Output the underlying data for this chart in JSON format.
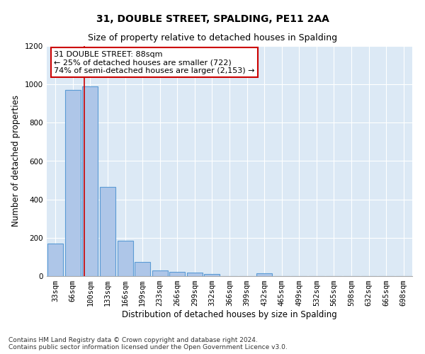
{
  "title": "31, DOUBLE STREET, SPALDING, PE11 2AA",
  "subtitle": "Size of property relative to detached houses in Spalding",
  "xlabel": "Distribution of detached houses by size in Spalding",
  "ylabel": "Number of detached properties",
  "categories": [
    "33sqm",
    "66sqm",
    "100sqm",
    "133sqm",
    "166sqm",
    "199sqm",
    "233sqm",
    "266sqm",
    "299sqm",
    "332sqm",
    "366sqm",
    "399sqm",
    "432sqm",
    "465sqm",
    "499sqm",
    "532sqm",
    "565sqm",
    "598sqm",
    "632sqm",
    "665sqm",
    "698sqm"
  ],
  "values": [
    170,
    970,
    990,
    465,
    185,
    75,
    30,
    22,
    18,
    12,
    0,
    0,
    15,
    0,
    0,
    0,
    0,
    0,
    0,
    0,
    0
  ],
  "bar_color": "#aec6e8",
  "bar_edge_color": "#5b9bd5",
  "vline_color": "#cc0000",
  "vline_pos": 1.647,
  "annotation_text": "31 DOUBLE STREET: 88sqm\n← 25% of detached houses are smaller (722)\n74% of semi-detached houses are larger (2,153) →",
  "annotation_box_color": "#ffffff",
  "annotation_box_edge": "#cc0000",
  "ylim": [
    0,
    1200
  ],
  "yticks": [
    0,
    200,
    400,
    600,
    800,
    1000,
    1200
  ],
  "bg_color": "#dce9f5",
  "footer": "Contains HM Land Registry data © Crown copyright and database right 2024.\nContains public sector information licensed under the Open Government Licence v3.0.",
  "title_fontsize": 10,
  "subtitle_fontsize": 9,
  "xlabel_fontsize": 8.5,
  "ylabel_fontsize": 8.5,
  "tick_fontsize": 7.5,
  "annotation_fontsize": 8,
  "footer_fontsize": 6.5
}
